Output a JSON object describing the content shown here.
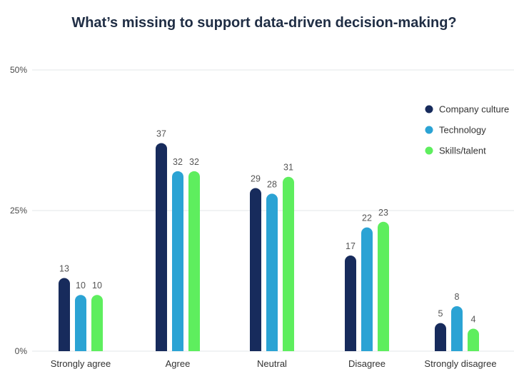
{
  "chart_data": {
    "type": "bar",
    "title": "What’s missing to support data-driven decision-making?",
    "categories": [
      "Strongly agree",
      "Agree",
      "Neutral",
      "Disagree",
      "Strongly disagree"
    ],
    "series": [
      {
        "name": "Company culture",
        "values": [
          13,
          37,
          29,
          17,
          5
        ],
        "color": "#172b5c"
      },
      {
        "name": "Technology",
        "values": [
          10,
          32,
          28,
          22,
          8
        ],
        "color": "#2ba3d4"
      },
      {
        "name": "Skills/talent",
        "values": [
          10,
          32,
          31,
          23,
          4
        ],
        "color": "#5eee5e"
      }
    ],
    "yticks": [
      "0%",
      "25%",
      "50%"
    ],
    "ylim": [
      0,
      50
    ],
    "grid": true,
    "legend": "top-right"
  }
}
